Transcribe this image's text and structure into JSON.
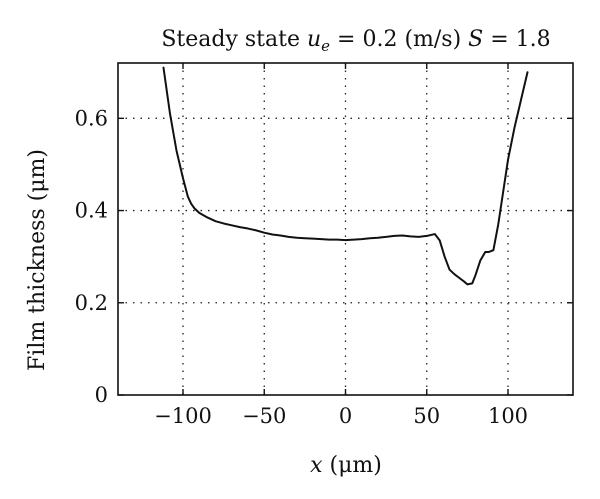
{
  "chart_data": {
    "type": "line",
    "title": {
      "prefix": "Steady state ",
      "var": "u",
      "var_sub": "e",
      "eq_value": " = 0.2 (m/s) ",
      "s_var": "S",
      "s_value": " = 1.8"
    },
    "xlabel": {
      "var": "x",
      "unit": " (μm)"
    },
    "ylabel": "Film thickness (μm)",
    "xlim": [
      -140,
      140
    ],
    "ylim": [
      0,
      0.72
    ],
    "x_ticks": [
      -100,
      -50,
      0,
      50,
      100
    ],
    "x_tick_labels": [
      "−100",
      "−50",
      "0",
      "50",
      "100"
    ],
    "y_ticks": [
      0,
      0.2,
      0.4,
      0.6
    ],
    "y_tick_labels": [
      "0",
      "0.2",
      "0.4",
      "0.6"
    ],
    "grid": true,
    "series": [
      {
        "color": "#111111",
        "x": [
          -112,
          -108,
          -104,
          -100,
          -97,
          -95,
          -93,
          -90,
          -85,
          -80,
          -75,
          -70,
          -65,
          -60,
          -55,
          -50,
          -45,
          -40,
          -35,
          -30,
          -25,
          -20,
          -15,
          -10,
          -5,
          0,
          5,
          10,
          15,
          20,
          25,
          30,
          35,
          40,
          45,
          50,
          55,
          58,
          61,
          64,
          67,
          70,
          73,
          75,
          78,
          80,
          83,
          86,
          88,
          91,
          94,
          97,
          100,
          104,
          108,
          112
        ],
        "y": [
          0.71,
          0.61,
          0.53,
          0.47,
          0.43,
          0.415,
          0.405,
          0.395,
          0.385,
          0.377,
          0.372,
          0.368,
          0.364,
          0.361,
          0.357,
          0.352,
          0.348,
          0.346,
          0.343,
          0.341,
          0.34,
          0.339,
          0.338,
          0.337,
          0.337,
          0.336,
          0.337,
          0.338,
          0.34,
          0.341,
          0.343,
          0.345,
          0.346,
          0.344,
          0.343,
          0.345,
          0.349,
          0.335,
          0.3,
          0.272,
          0.262,
          0.254,
          0.246,
          0.24,
          0.242,
          0.26,
          0.292,
          0.31,
          0.31,
          0.314,
          0.37,
          0.44,
          0.51,
          0.58,
          0.64,
          0.7
        ]
      }
    ]
  }
}
